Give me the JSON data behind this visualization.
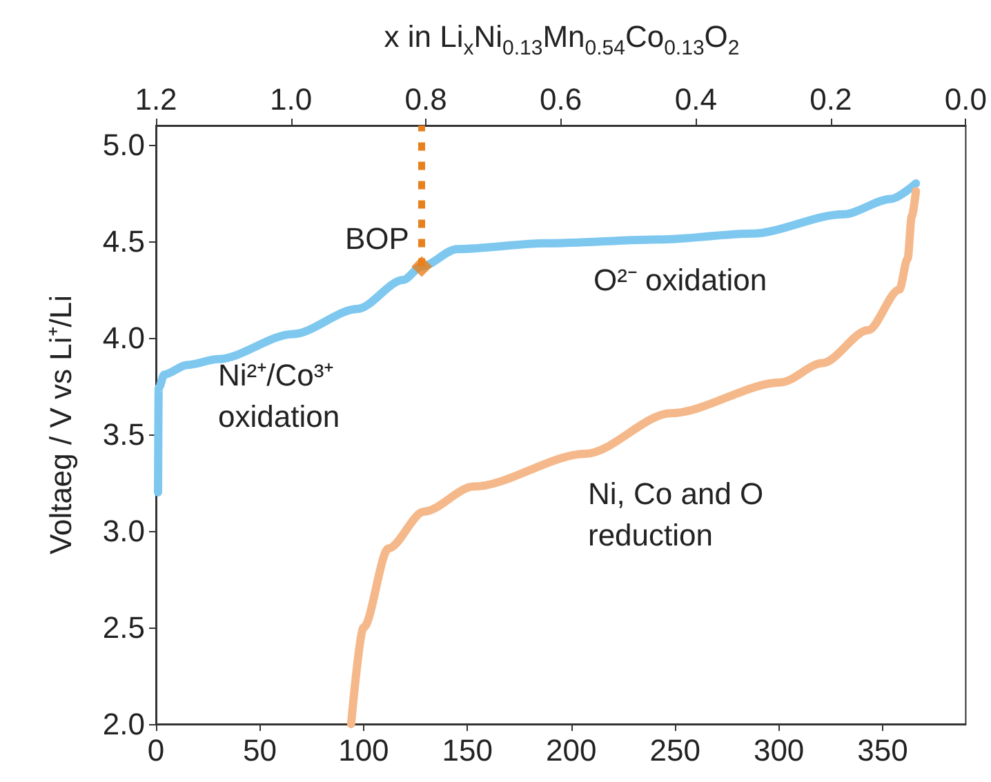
{
  "chart_data": {
    "type": "line",
    "x2label": "x in Li$_{x}$Ni$_{0.13}$Mn$_{0.54}$Co$_{0.13}$O$_{2}$",
    "ylabel": "Voltaeg / V vs Li⁺/Li",
    "xlim": [
      0,
      390
    ],
    "xticks": [
      0,
      50,
      100,
      150,
      200,
      250,
      300,
      350
    ],
    "x2lim": [
      1.2,
      0.0
    ],
    "x2ticks": [
      1.2,
      {
        "value": 1.0,
        "label": "1.0"
      },
      0.8,
      0.6,
      0.4,
      0.2,
      {
        "value": 0.0,
        "label": "0.0"
      }
    ],
    "ylim": [
      2.0,
      5.1
    ],
    "yticks": [
      {
        "value": 2.0,
        "label": "2.0"
      },
      2.5,
      {
        "value": 3.0,
        "label": "3.0"
      },
      3.5,
      {
        "value": 4.0,
        "label": "4.0"
      },
      4.5,
      {
        "value": 5.0,
        "label": "5.0"
      }
    ],
    "grid": false,
    "marker": "none",
    "ref_lines": [
      {
        "axis": "x",
        "value": 128,
        "color": "#e8801c",
        "line_style": "dashed"
      }
    ],
    "series": [
      {
        "color": "#7ec8f0",
        "x": [
          1,
          1.3,
          4,
          15,
          30,
          66,
          97,
          119,
          128,
          145,
          188,
          243,
          287,
          331,
          354,
          366
        ],
        "values": [
          3.2,
          3.74,
          3.81,
          3.86,
          3.89,
          4.02,
          4.15,
          4.3,
          4.37,
          4.46,
          4.49,
          4.51,
          4.54,
          4.64,
          4.72,
          4.8
        ]
      },
      {
        "color": "#f5b88a",
        "x": [
          94,
          100,
          112,
          129,
          153,
          207,
          248,
          301,
          321,
          343,
          358,
          362,
          364,
          366
        ],
        "values": [
          2.0,
          2.5,
          2.91,
          3.1,
          3.23,
          3.4,
          3.61,
          3.77,
          3.87,
          4.04,
          4.25,
          4.41,
          4.63,
          4.76
        ]
      },
      {
        "type": "scatter",
        "marker": "diamond",
        "color": "#e8801c",
        "x": [
          128
        ],
        "values": [
          4.37
        ]
      }
    ],
    "annotations": [
      "BOP",
      "Ni²⁺/Co³⁺\noxidation",
      "O²⁻ oxidation",
      "Ni, Co and O\nreduction"
    ]
  }
}
